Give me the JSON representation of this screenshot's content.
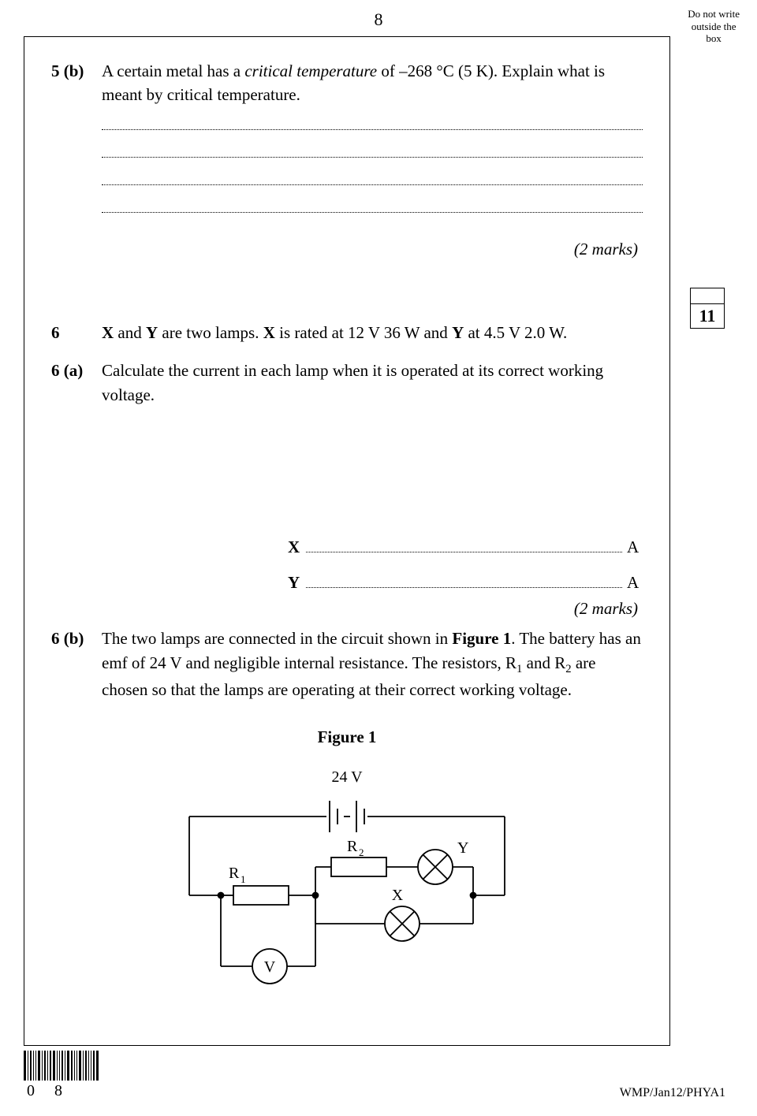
{
  "page": {
    "number": "8",
    "side_note_l1": "Do not write",
    "side_note_l2": "outside the",
    "side_note_l3": "box"
  },
  "q5b": {
    "label": "5 (b)",
    "text_pre": "A certain metal has a ",
    "crit_temp": "critical temperature",
    "text_mid": " of –268 °C (5 K).  Explain what is meant by critical temperature.",
    "marks": "(2 marks)",
    "total_box": "11"
  },
  "q6": {
    "label": "6",
    "text_part1": "X",
    "text_part2": " and ",
    "text_part3": "Y",
    "text_part4": " are two lamps.  ",
    "text_part5": "X",
    "text_part6": " is rated at 12 V 36 W and ",
    "text_part7": "Y",
    "text_part8": " at 4.5 V 2.0 W."
  },
  "q6a": {
    "label": "6 (a)",
    "text": "Calculate the current in each lamp when it is operated at its correct working voltage."
  },
  "answers": {
    "x_sym": "X",
    "y_sym": "Y",
    "unit": "A",
    "marks": "(2 marks)"
  },
  "q6b": {
    "label": "6 (b)",
    "text_pre": "The two lamps are connected in the circuit shown in ",
    "fig_ref": "Figure 1",
    "text_post": ".  The battery has an emf of 24 V and negligible internal resistance.  The resistors, R",
    "sub1": "1",
    "and_r": " and R",
    "sub2": "2",
    "tail": " are chosen so that the lamps are operating at their correct working voltage.",
    "caption": "Figure 1"
  },
  "circuit": {
    "type": "diagram",
    "stroke": "#000000",
    "stroke_width": 1.8,
    "battery_label": "24 V",
    "R1": "R",
    "R1_sub": "1",
    "R2": "R",
    "R2_sub": "2",
    "X": "X",
    "Y": "Y",
    "V": "V",
    "font_size": 20
  },
  "footer": {
    "ref": "WMP/Jan12/PHYA1",
    "barcode_label": "0 8"
  }
}
